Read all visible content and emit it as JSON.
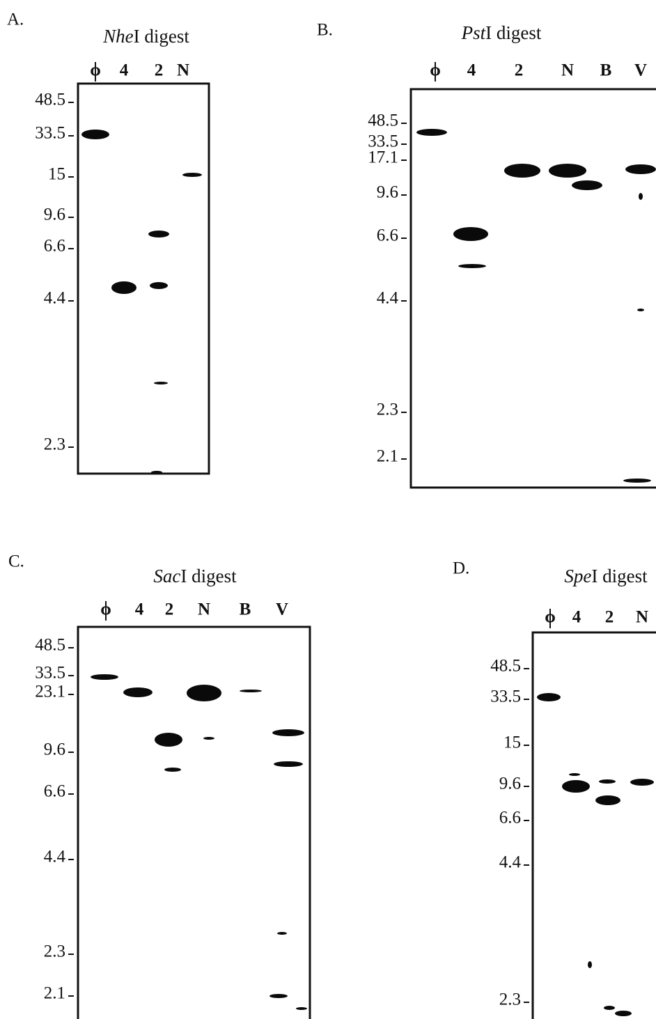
{
  "panels": [
    {
      "label": "A.",
      "title": [
        "Nhe",
        "I digest"
      ],
      "lanes": [
        "ϕ",
        "4",
        "2",
        "N"
      ],
      "markers": [
        "48.5",
        "33.5",
        "15",
        "9.6",
        "6.6",
        "4.4",
        "2.3"
      ]
    },
    {
      "label": "B.",
      "title": [
        "Pst",
        "I  digest"
      ],
      "lanes": [
        "ϕ",
        "4",
        "2",
        "N",
        "B",
        "V"
      ],
      "markers": [
        "48.5",
        "33.5",
        "17.1",
        "9.6",
        "6.6",
        "4.4",
        "2.3",
        "2.1"
      ]
    },
    {
      "label": "C.",
      "title": [
        "Sac",
        "I  digest"
      ],
      "lanes": [
        "ϕ",
        "4",
        "2",
        "N",
        "B",
        "V"
      ],
      "markers": [
        "48.5",
        "33.5",
        "23.1",
        "9.6",
        "6.6",
        "4.4",
        "2.3",
        "2.1"
      ]
    },
    {
      "label": "D.",
      "title": [
        "Spe",
        "I digest"
      ],
      "lanes": [
        "ϕ",
        "4",
        "2",
        "N"
      ],
      "markers": [
        "48.5",
        "33.5",
        "15",
        "9.6",
        "6.6",
        "4.4",
        "2.3"
      ]
    }
  ]
}
